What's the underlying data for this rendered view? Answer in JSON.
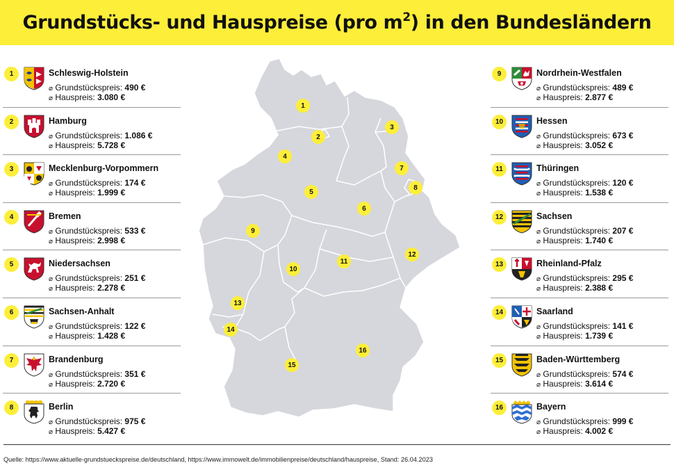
{
  "title": {
    "main": "Grundstücks- und Hauspreise (pro m",
    "sup": "2",
    "end": ") in den Bundesländern"
  },
  "labels": {
    "diameter": "⌀",
    "land_price": "Grundstückspreis:",
    "house_price": "Hauspreis:"
  },
  "states": [
    {
      "num": "1",
      "name": "Schleswig-Holstein",
      "land_price": "490 €",
      "house_price": "3.080 €",
      "crest": "sh-crest-icon"
    },
    {
      "num": "2",
      "name": "Hamburg",
      "land_price": "1.086 €",
      "house_price": "5.728 €",
      "crest": "hh-crest-icon"
    },
    {
      "num": "3",
      "name": "Mecklenburg-Vorpommern",
      "land_price": "174 €",
      "house_price": "1.999 €",
      "crest": "mv-crest-icon"
    },
    {
      "num": "4",
      "name": "Bremen",
      "land_price": "533 €",
      "house_price": "2.998 €",
      "crest": "hb-crest-icon"
    },
    {
      "num": "5",
      "name": "Niedersachsen",
      "land_price": "251 €",
      "house_price": "2.278 €",
      "crest": "ni-crest-icon"
    },
    {
      "num": "6",
      "name": "Sachsen-Anhalt",
      "land_price": "122 €",
      "house_price": "1.428 €",
      "crest": "st-crest-icon"
    },
    {
      "num": "7",
      "name": "Brandenburg",
      "land_price": "351 €",
      "house_price": "2.720 €",
      "crest": "bb-crest-icon"
    },
    {
      "num": "8",
      "name": "Berlin",
      "land_price": "975 €",
      "house_price": "5.427 €",
      "crest": "be-crest-icon"
    },
    {
      "num": "9",
      "name": "Nordrhein-Westfalen",
      "land_price": "489 €",
      "house_price": "2.877 €",
      "crest": "nw-crest-icon"
    },
    {
      "num": "10",
      "name": "Hessen",
      "land_price": "673 €",
      "house_price": "3.052 €",
      "crest": "he-crest-icon"
    },
    {
      "num": "11",
      "name": "Thüringen",
      "land_price": "120 €",
      "house_price": "1.538 €",
      "crest": "th-crest-icon"
    },
    {
      "num": "12",
      "name": "Sachsen",
      "land_price": "207 €",
      "house_price": "1.740 €",
      "crest": "sn-crest-icon"
    },
    {
      "num": "13",
      "name": "Rheinland-Pfalz",
      "land_price": "295 €",
      "house_price": "2.388 €",
      "crest": "rp-crest-icon"
    },
    {
      "num": "14",
      "name": "Saarland",
      "land_price": "141 €",
      "house_price": "1.739 €",
      "crest": "sl-crest-icon"
    },
    {
      "num": "15",
      "name": "Baden-Württemberg",
      "land_price": "574 €",
      "house_price": "3.614 €",
      "crest": "bw-crest-icon"
    },
    {
      "num": "16",
      "name": "Bayern",
      "land_price": "999 €",
      "house_price": "4.002 €",
      "crest": "by-crest-icon"
    }
  ],
  "map_markers": [
    "1",
    "2",
    "3",
    "4",
    "5",
    "6",
    "7",
    "8",
    "9",
    "10",
    "11",
    "12",
    "13",
    "14",
    "15",
    "16"
  ],
  "colors": {
    "accent_yellow": "#fdee3a",
    "map_fill": "#d5d7dc",
    "map_border": "#ffffff"
  },
  "source": "Quelle: https://www.aktuelle-grundstueckspreise.de/deutschland, https://www.immowelt.de/immobilienpreise/deutschland/hauspreise, Stand: 26.04.2023"
}
